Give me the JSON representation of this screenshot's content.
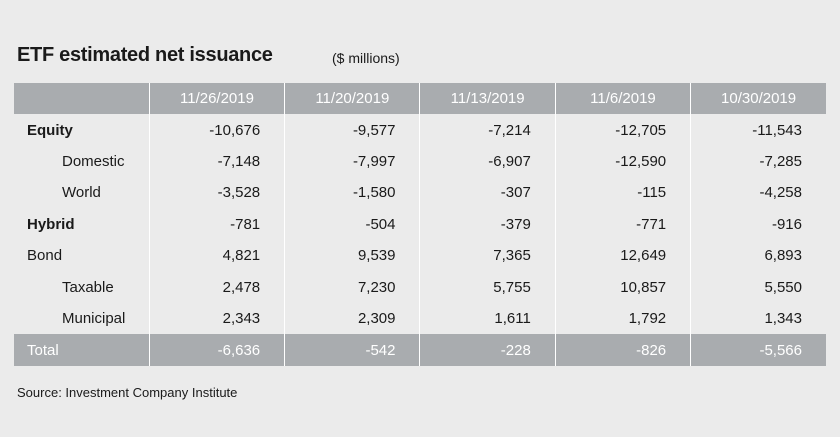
{
  "title": "ETF estimated net issuance",
  "units": "($ millions)",
  "source": "Source: Investment Company Institute",
  "chart_data": {
    "type": "table",
    "title": "ETF estimated net issuance",
    "subtitle": "($ millions)",
    "columns": [
      "11/26/2019",
      "11/20/2019",
      "11/13/2019",
      "11/6/2019",
      "10/30/2019"
    ],
    "rows": [
      {
        "label": "Equity",
        "bold": true,
        "indent": false,
        "values": [
          "-10,676",
          "-9,577",
          "-7,214",
          "-12,705",
          "-11,543"
        ]
      },
      {
        "label": "Domestic",
        "bold": false,
        "indent": true,
        "values": [
          "-7,148",
          "-7,997",
          "-6,907",
          "-12,590",
          "-7,285"
        ]
      },
      {
        "label": "World",
        "bold": false,
        "indent": true,
        "values": [
          "-3,528",
          "-1,580",
          "-307",
          "-115",
          "-4,258"
        ]
      },
      {
        "label": "Hybrid",
        "bold": true,
        "indent": false,
        "values": [
          "-781",
          "-504",
          "-379",
          "-771",
          "-916"
        ]
      },
      {
        "label": "Bond",
        "bold": false,
        "indent": false,
        "values": [
          "4,821",
          "9,539",
          "7,365",
          "12,649",
          "6,893"
        ]
      },
      {
        "label": "Taxable",
        "bold": false,
        "indent": true,
        "values": [
          "2,478",
          "7,230",
          "5,755",
          "10,857",
          "5,550"
        ]
      },
      {
        "label": "Municipal",
        "bold": false,
        "indent": true,
        "values": [
          "2,343",
          "2,309",
          "1,611",
          "1,792",
          "1,343"
        ]
      }
    ],
    "total": {
      "label": "Total",
      "values": [
        "-6,636",
        "-542",
        "-228",
        "-826",
        "-5,566"
      ]
    }
  }
}
